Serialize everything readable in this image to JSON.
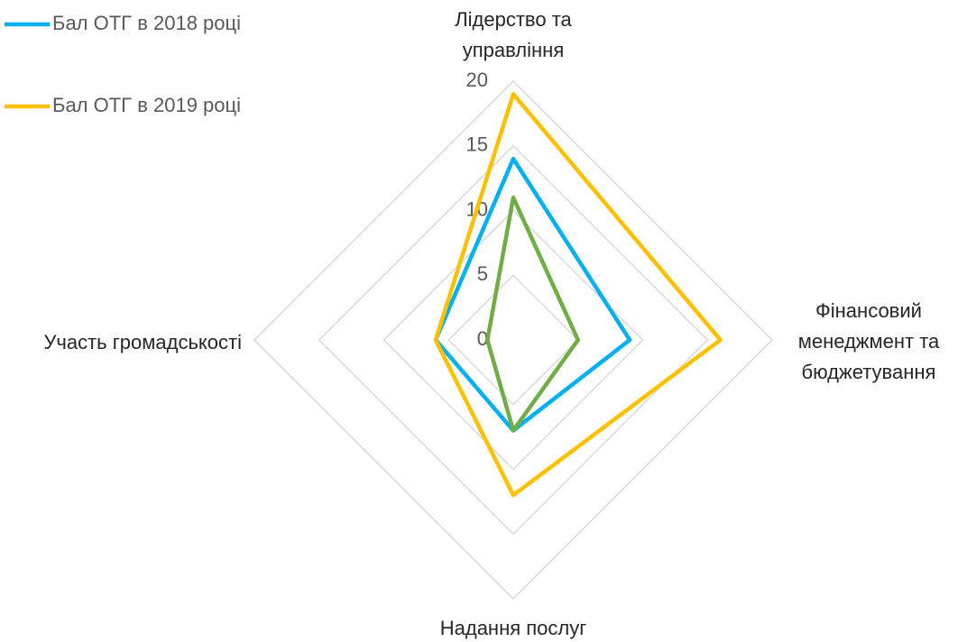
{
  "chart_data": {
    "type": "radar",
    "categories": [
      "Лідерство та управління",
      "Фінансовий менеджмент та бюджетування",
      "Надання послуг",
      "Участь громадськості"
    ],
    "series": [
      {
        "name": "Бал ОТГ в 2018 році",
        "color": "#00b0f0",
        "values": [
          14,
          9,
          7,
          6
        ]
      },
      {
        "name": "Бал ОТГ в 2019 році",
        "color": "#ffc000",
        "values": [
          19,
          16,
          12,
          6
        ]
      },
      {
        "color": "#70ad47",
        "values": [
          11,
          5,
          7,
          2
        ]
      }
    ],
    "ylim": [
      0,
      20
    ],
    "yticks": [
      0,
      5,
      10,
      15,
      20
    ],
    "grid": true,
    "legend": "top-left"
  }
}
